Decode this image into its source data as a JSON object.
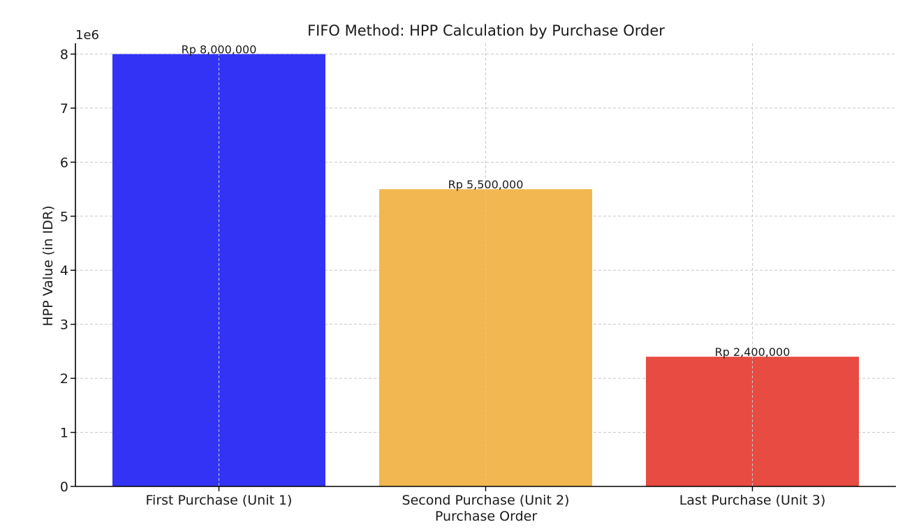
{
  "chart_data": {
    "type": "bar",
    "title": "FIFO Method: HPP Calculation by Purchase Order",
    "xlabel": "Purchase Order",
    "ylabel": "HPP Value (in IDR)",
    "y_offset_label": "1e6",
    "categories": [
      "First Purchase (Unit 1)",
      "Second Purchase (Unit 2)",
      "Last Purchase (Unit 3)"
    ],
    "values": [
      8000000,
      5500000,
      2400000
    ],
    "data_labels": [
      "Rp 8,000,000",
      "Rp 5,500,000",
      "Rp 2,400,000"
    ],
    "colors": [
      "#3333f5",
      "#f2b751",
      "#e84b41"
    ],
    "ylim": [
      0,
      8200000
    ],
    "y_ticks": [
      0,
      1000000,
      2000000,
      3000000,
      4000000,
      5000000,
      6000000,
      7000000,
      8000000
    ],
    "y_tick_labels": [
      "0",
      "1",
      "2",
      "3",
      "4",
      "5",
      "6",
      "7",
      "8"
    ],
    "grid": true,
    "legend": "none"
  }
}
